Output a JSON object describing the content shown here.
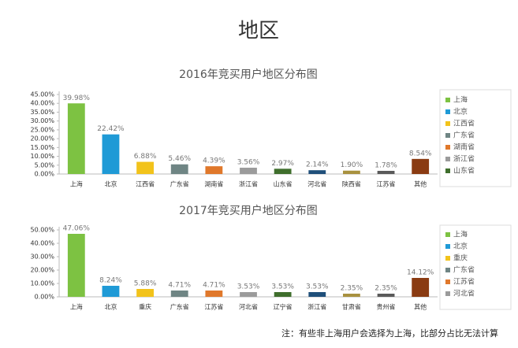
{
  "title": "地区",
  "note": "注：有些非上海用户会选择为上海，比部分占比无法计算",
  "chart_data": [
    {
      "type": "bar",
      "title": "2016年竞买用户地区分布图",
      "categories": [
        "上海",
        "北京",
        "江西省",
        "广东省",
        "湖南省",
        "浙江省",
        "山东省",
        "河北省",
        "陕西省",
        "江苏省",
        "其他"
      ],
      "values": [
        39.98,
        22.42,
        6.88,
        5.46,
        4.39,
        3.56,
        2.97,
        2.14,
        1.9,
        1.78,
        8.54
      ],
      "value_labels": [
        "39.98%",
        "22.42%",
        "6.88%",
        "5.46%",
        "4.39%",
        "3.56%",
        "2.97%",
        "2.14%",
        "1.90%",
        "1.78%",
        "8.54%"
      ],
      "colors": [
        "#7dc242",
        "#1f9ad6",
        "#f2c31b",
        "#6f8584",
        "#e0782b",
        "#9b9b9b",
        "#3f6e2c",
        "#1f4f7a",
        "#a8913f",
        "#5a5a5a",
        "#8a3b12"
      ],
      "ylim": [
        0,
        45
      ],
      "yticks": [
        {
          "value": 0,
          "label": "0.00%"
        },
        {
          "value": 5,
          "label": "5.00%"
        },
        {
          "value": 10,
          "label": "10.00%"
        },
        {
          "value": 15,
          "label": "15.00%"
        },
        {
          "value": 20,
          "label": "20.00%"
        },
        {
          "value": 25,
          "label": "25.00%"
        },
        {
          "value": 30,
          "label": "30.00%"
        },
        {
          "value": 35,
          "label": "35.00%"
        },
        {
          "value": 40,
          "label": "40.00%"
        },
        {
          "value": 45,
          "label": "45.00%"
        }
      ]
    },
    {
      "type": "bar",
      "title": "2017年竞买用户地区分布图",
      "categories": [
        "上海",
        "北京",
        "重庆",
        "广东省",
        "江苏省",
        "河北省",
        "辽宁省",
        "浙江省",
        "甘肃省",
        "贵州省",
        "其他"
      ],
      "values": [
        47.06,
        8.24,
        5.88,
        4.71,
        4.71,
        3.53,
        3.53,
        3.53,
        2.35,
        2.35,
        14.12
      ],
      "value_labels": [
        "47.06%",
        "8.24%",
        "5.88%",
        "4.71%",
        "4.71%",
        "3.53%",
        "3.53%",
        "3.53%",
        "2.35%",
        "2.35%",
        "14.12%"
      ],
      "colors": [
        "#7dc242",
        "#1f9ad6",
        "#f2c31b",
        "#6f8584",
        "#e0782b",
        "#9b9b9b",
        "#3f6e2c",
        "#1f4f7a",
        "#a8913f",
        "#5a5a5a",
        "#8a3b12"
      ],
      "ylim": [
        0,
        50
      ],
      "yticks": [
        {
          "value": 0,
          "label": "0.00%"
        },
        {
          "value": 10,
          "label": "10.00%"
        },
        {
          "value": 20,
          "label": "20.00%"
        },
        {
          "value": 30,
          "label": "30.00%"
        },
        {
          "value": 40,
          "label": "40.00%"
        },
        {
          "value": 50,
          "label": "50.00%"
        }
      ]
    }
  ]
}
